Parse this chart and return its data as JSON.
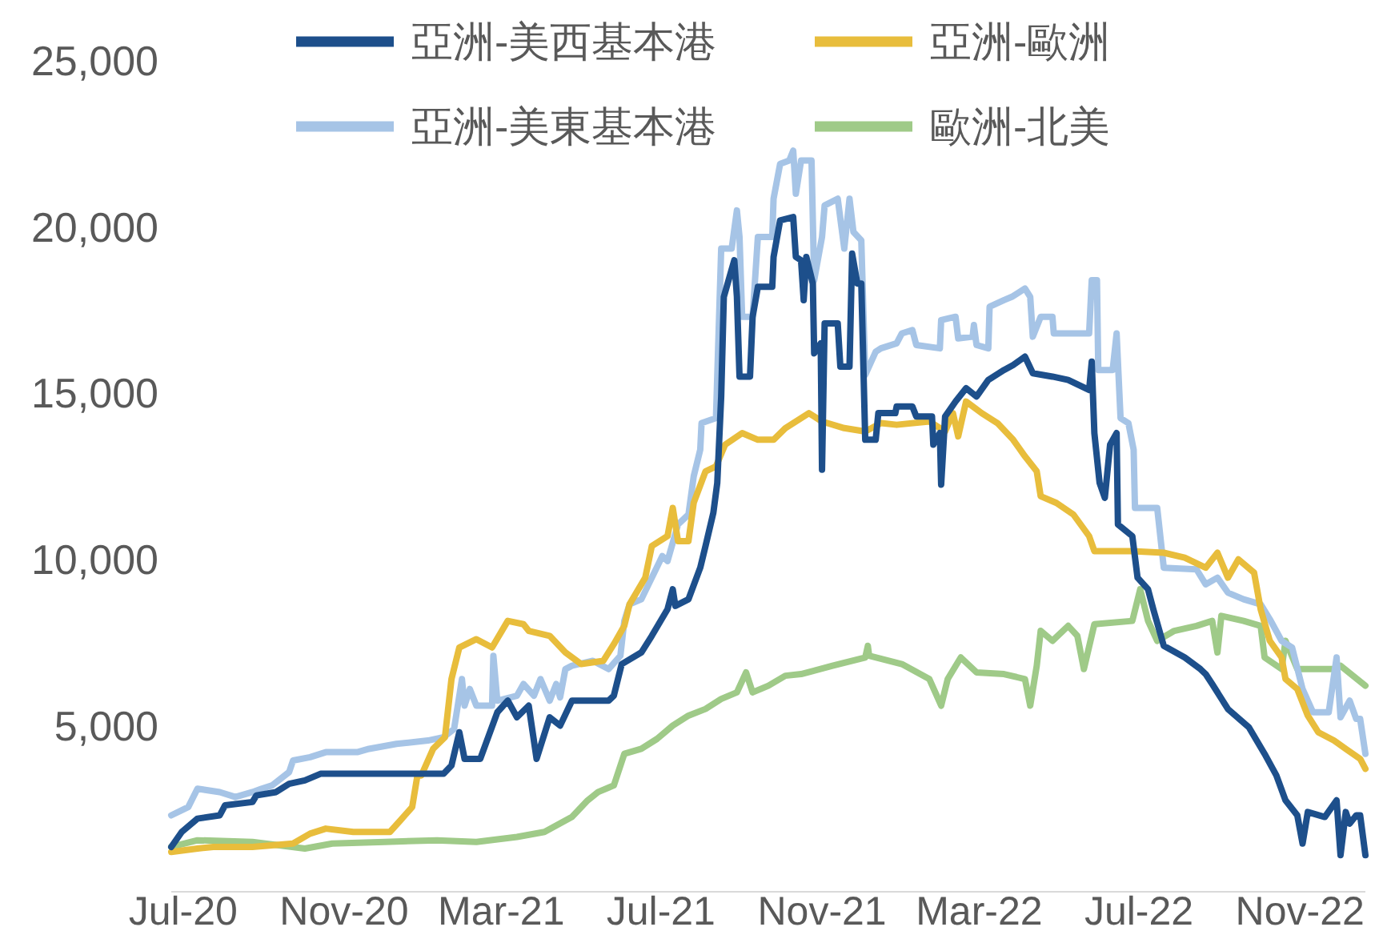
{
  "chart_data": {
    "type": "line",
    "legend": "top",
    "grid": false,
    "xlim": [
      "2020-06-22",
      "2022-12-21"
    ],
    "ylim": [
      0,
      25000
    ],
    "xticks": [
      {
        "value": "2020-07-01",
        "label": "Jul-20"
      },
      {
        "value": "2020-11-01",
        "label": "Nov-20"
      },
      {
        "value": "2021-03-01",
        "label": "Mar-21"
      },
      {
        "value": "2021-07-01",
        "label": "Jul-21"
      },
      {
        "value": "2021-11-01",
        "label": "Nov-21"
      },
      {
        "value": "2022-03-01",
        "label": "Mar-22"
      },
      {
        "value": "2022-07-01",
        "label": "Jul-22"
      },
      {
        "value": "2022-11-01",
        "label": "Nov-22"
      }
    ],
    "yticks": [
      {
        "value": 5000,
        "label": "5,000"
      },
      {
        "value": 10000,
        "label": "10,000"
      },
      {
        "value": 15000,
        "label": "15,000"
      },
      {
        "value": 20000,
        "label": "20,000"
      },
      {
        "value": 25000,
        "label": "25,000"
      }
    ],
    "series": [
      {
        "name": "亞洲-美西基本港",
        "color": "#1d4f8b",
        "x": [
          "2020-06-22",
          "2020-06-30",
          "2020-07-12",
          "2020-07-29",
          "2020-08-02",
          "2020-08-23",
          "2020-08-26",
          "2020-09-10",
          "2020-09-20",
          "2020-10-02",
          "2020-10-14",
          "2021-01-16",
          "2021-01-22",
          "2021-01-28",
          "2021-02-01",
          "2021-02-13",
          "2021-02-26",
          "2021-03-06",
          "2021-03-13",
          "2021-03-22",
          "2021-03-28",
          "2021-04-07",
          "2021-04-15",
          "2021-04-24",
          "2021-05-22",
          "2021-05-26",
          "2021-06-01",
          "2021-06-16",
          "2021-06-24",
          "2021-07-06",
          "2021-07-10",
          "2021-07-12",
          "2021-07-22",
          "2021-07-31",
          "2021-08-04",
          "2021-08-10",
          "2021-08-13",
          "2021-08-16",
          "2021-08-18",
          "2021-08-26",
          "2021-08-28",
          "2021-08-30",
          "2021-09-07",
          "2021-09-09",
          "2021-09-13",
          "2021-09-24",
          "2021-09-25",
          "2021-09-30",
          "2021-10-10",
          "2021-10-12",
          "2021-10-16",
          "2021-10-18",
          "2021-10-20",
          "2021-10-25",
          "2021-10-26",
          "2021-10-31",
          "2021-11-01",
          "2021-11-03",
          "2021-11-13",
          "2021-11-15",
          "2021-11-22",
          "2021-11-24",
          "2021-11-28",
          "2021-12-01",
          "2021-12-04",
          "2021-12-12",
          "2021-12-14",
          "2021-12-27",
          "2021-12-28",
          "2022-01-09",
          "2022-01-12",
          "2022-01-24",
          "2022-01-25",
          "2022-01-30",
          "2022-01-31",
          "2022-02-03",
          "2022-02-11",
          "2022-02-19",
          "2022-02-27",
          "2022-03-08",
          "2022-03-20",
          "2022-03-27",
          "2022-04-05",
          "2022-04-11",
          "2022-04-26",
          "2022-05-08",
          "2022-05-24",
          "2022-05-26",
          "2022-05-28",
          "2022-06-01",
          "2022-06-05",
          "2022-06-09",
          "2022-06-14",
          "2022-06-15",
          "2022-06-26",
          "2022-06-30",
          "2022-07-08",
          "2022-07-12",
          "2022-07-20",
          "2022-08-05",
          "2022-08-17",
          "2022-08-21",
          "2022-08-26",
          "2022-09-07",
          "2022-09-23",
          "2022-10-05",
          "2022-10-14",
          "2022-10-21",
          "2022-10-30",
          "2022-11-03",
          "2022-11-07",
          "2022-11-20",
          "2022-11-29",
          "2022-12-02",
          "2022-12-06",
          "2022-12-09",
          "2022-12-14",
          "2022-12-17",
          "2022-12-21"
        ],
        "values": [
          1350,
          1800,
          2200,
          2300,
          2600,
          2700,
          2900,
          3000,
          3250,
          3350,
          3550,
          3550,
          3800,
          4800,
          4000,
          4000,
          5400,
          5750,
          5250,
          5600,
          4000,
          5250,
          5000,
          5750,
          5750,
          5900,
          6850,
          7200,
          7700,
          8500,
          9100,
          8600,
          8800,
          9750,
          10400,
          11400,
          12300,
          14900,
          17900,
          19000,
          17900,
          15500,
          15500,
          17300,
          18200,
          18200,
          19100,
          20200,
          20300,
          19100,
          19000,
          17800,
          19100,
          18300,
          16200,
          16500,
          12700,
          17100,
          17100,
          15800,
          15800,
          19200,
          18300,
          18300,
          13600,
          13600,
          14400,
          14400,
          14600,
          14600,
          14300,
          14300,
          13450,
          13800,
          12250,
          14300,
          14750,
          15150,
          14900,
          15400,
          15700,
          15850,
          16100,
          15600,
          15500,
          15400,
          15100,
          15950,
          13800,
          12300,
          11850,
          13450,
          13800,
          11050,
          10700,
          9450,
          9100,
          8500,
          7400,
          7050,
          6700,
          6550,
          6250,
          5500,
          4950,
          4150,
          3500,
          2750,
          2300,
          1450,
          2400,
          2250,
          2750,
          1100,
          2400,
          2050,
          2300,
          2300,
          1100
        ]
      },
      {
        "name": "亞洲-歐洲",
        "color": "#e8bd3c",
        "x": [
          "2020-06-22",
          "2020-07-12",
          "2020-07-24",
          "2020-08-23",
          "2020-09-23",
          "2020-10-06",
          "2020-10-18",
          "2020-11-08",
          "2020-12-06",
          "2020-12-14",
          "2020-12-23",
          "2020-12-27",
          "2020-12-30",
          "2021-01-08",
          "2021-01-17",
          "2021-01-22",
          "2021-01-28",
          "2021-02-10",
          "2021-02-22",
          "2021-03-06",
          "2021-03-18",
          "2021-03-22",
          "2021-04-07",
          "2021-04-19",
          "2021-05-01",
          "2021-05-18",
          "2021-05-26",
          "2021-06-03",
          "2021-06-07",
          "2021-06-19",
          "2021-06-24",
          "2021-07-06",
          "2021-07-10",
          "2021-07-14",
          "2021-07-22",
          "2021-07-26",
          "2021-08-04",
          "2021-08-12",
          "2021-08-19",
          "2021-09-01",
          "2021-09-13",
          "2021-09-25",
          "2021-10-04",
          "2021-10-16",
          "2021-10-22",
          "2021-11-01",
          "2021-11-18",
          "2021-12-04",
          "2021-12-16",
          "2021-12-28",
          "2022-01-22",
          "2022-02-03",
          "2022-02-09",
          "2022-02-13",
          "2022-02-19",
          "2022-03-03",
          "2022-03-15",
          "2022-03-27",
          "2022-04-05",
          "2022-04-14",
          "2022-04-17",
          "2022-04-29",
          "2022-05-12",
          "2022-05-24",
          "2022-05-28",
          "2022-06-26",
          "2022-07-20",
          "2022-08-05",
          "2022-08-21",
          "2022-08-30",
          "2022-09-07",
          "2022-09-15",
          "2022-09-27",
          "2022-10-02",
          "2022-10-09",
          "2022-10-18",
          "2022-10-21",
          "2022-10-30",
          "2022-11-07",
          "2022-11-15",
          "2022-11-27",
          "2022-12-06",
          "2022-12-17",
          "2022-12-21"
        ],
        "values": [
          1200,
          1300,
          1350,
          1350,
          1450,
          1750,
          1900,
          1800,
          1800,
          2150,
          2550,
          3500,
          3500,
          4300,
          4650,
          6400,
          7350,
          7600,
          7350,
          8150,
          8050,
          7850,
          7700,
          7200,
          6850,
          6950,
          7450,
          8000,
          8650,
          9450,
          10400,
          10700,
          11550,
          10550,
          10550,
          11700,
          12650,
          12800,
          13450,
          13800,
          13600,
          13600,
          13950,
          14250,
          14400,
          14150,
          13950,
          13850,
          14100,
          14050,
          14150,
          13850,
          14400,
          13700,
          14750,
          14400,
          14100,
          13600,
          13100,
          12650,
          11900,
          11700,
          11350,
          10700,
          10250,
          10250,
          10200,
          10050,
          9750,
          10200,
          9450,
          10000,
          9600,
          8500,
          7550,
          7050,
          6400,
          6100,
          5300,
          4800,
          4550,
          4300,
          4000,
          3700
        ]
      },
      {
        "name": "亞洲-美東基本港",
        "color": "#a6c4e6",
        "x": [
          "2020-06-22",
          "2020-07-05",
          "2020-07-12",
          "2020-07-29",
          "2020-08-10",
          "2020-08-23",
          "2020-08-30",
          "2020-09-07",
          "2020-09-20",
          "2020-09-23",
          "2020-10-06",
          "2020-10-18",
          "2020-11-11",
          "2020-11-20",
          "2020-12-11",
          "2021-01-04",
          "2021-01-16",
          "2021-01-24",
          "2021-01-30",
          "2021-02-01",
          "2021-02-05",
          "2021-02-10",
          "2021-02-22",
          "2021-02-23",
          "2021-02-26",
          "2021-03-13",
          "2021-03-18",
          "2021-03-26",
          "2021-03-31",
          "2021-04-07",
          "2021-04-12",
          "2021-04-15",
          "2021-04-19",
          "2021-04-24",
          "2021-05-10",
          "2021-05-22",
          "2021-05-31",
          "2021-06-03",
          "2021-06-07",
          "2021-06-16",
          "2021-07-02",
          "2021-07-06",
          "2021-07-14",
          "2021-07-22",
          "2021-07-26",
          "2021-07-31",
          "2021-08-01",
          "2021-08-12",
          "2021-08-16",
          "2021-08-24",
          "2021-08-28",
          "2021-08-30",
          "2021-09-01",
          "2021-09-09",
          "2021-09-13",
          "2021-09-24",
          "2021-09-25",
          "2021-09-30",
          "2021-10-07",
          "2021-10-10",
          "2021-10-12",
          "2021-10-16",
          "2021-10-24",
          "2021-10-26",
          "2021-11-01",
          "2021-11-03",
          "2021-11-13",
          "2021-11-18",
          "2021-11-22",
          "2021-11-25",
          "2021-12-01",
          "2021-12-04",
          "2021-12-12",
          "2021-12-16",
          "2021-12-28",
          "2022-01-01",
          "2022-01-09",
          "2022-01-12",
          "2022-01-30",
          "2022-01-31",
          "2022-02-11",
          "2022-02-13",
          "2022-02-24",
          "2022-02-25",
          "2022-02-27",
          "2022-03-08",
          "2022-03-09",
          "2022-03-20",
          "2022-03-26",
          "2022-04-05",
          "2022-04-09",
          "2022-04-11",
          "2022-04-17",
          "2022-04-26",
          "2022-04-27",
          "2022-05-24",
          "2022-05-26",
          "2022-05-30",
          "2022-05-31",
          "2022-06-11",
          "2022-06-14",
          "2022-06-17",
          "2022-06-23",
          "2022-06-27",
          "2022-06-28",
          "2022-07-15",
          "2022-07-20",
          "2022-08-14",
          "2022-08-21",
          "2022-08-30",
          "2022-09-07",
          "2022-09-19",
          "2022-10-02",
          "2022-10-09",
          "2022-10-18",
          "2022-10-26",
          "2022-11-03",
          "2022-11-11",
          "2022-11-23",
          "2022-11-29",
          "2022-12-02",
          "2022-12-09",
          "2022-12-14",
          "2022-12-17",
          "2022-12-21"
        ],
        "values": [
          2300,
          2550,
          3100,
          3000,
          2850,
          3000,
          3100,
          3200,
          3600,
          3950,
          4050,
          4200,
          4200,
          4300,
          4450,
          4550,
          4650,
          4900,
          6400,
          5600,
          6100,
          5600,
          5600,
          7100,
          5750,
          5900,
          6250,
          5900,
          6400,
          5750,
          6250,
          5850,
          6700,
          6800,
          6950,
          6700,
          7100,
          8150,
          8650,
          8800,
          10100,
          9950,
          11050,
          11350,
          12500,
          13300,
          14100,
          14250,
          19350,
          19350,
          20500,
          19700,
          17300,
          17300,
          19700,
          19700,
          20850,
          21900,
          22000,
          22300,
          21000,
          22000,
          22000,
          18400,
          19700,
          20650,
          20850,
          19350,
          20850,
          19850,
          19600,
          15550,
          16250,
          16350,
          16500,
          16800,
          16900,
          16450,
          16350,
          17200,
          17300,
          16650,
          16700,
          17050,
          16450,
          16350,
          17600,
          17800,
          17900,
          18150,
          17900,
          16700,
          17300,
          17300,
          16800,
          16800,
          18400,
          18400,
          15700,
          15700,
          16800,
          14250,
          14100,
          13300,
          11550,
          11550,
          9750,
          9700,
          9250,
          9450,
          9000,
          8800,
          8650,
          8200,
          7550,
          7350,
          6100,
          5400,
          5400,
          7050,
          5250,
          5750,
          5200,
          5200,
          4150
        ]
      },
      {
        "name": "歐洲-北美",
        "color": "#9fca88",
        "x": [
          "2020-06-22",
          "2020-07-12",
          "2020-08-23",
          "2020-10-02",
          "2020-10-23",
          "2020-12-02",
          "2021-01-11",
          "2021-02-10",
          "2021-03-13",
          "2021-04-03",
          "2021-04-24",
          "2021-05-06",
          "2021-05-14",
          "2021-05-26",
          "2021-06-03",
          "2021-06-16",
          "2021-06-28",
          "2021-07-10",
          "2021-07-22",
          "2021-08-04",
          "2021-08-16",
          "2021-08-28",
          "2021-09-04",
          "2021-09-09",
          "2021-09-21",
          "2021-10-04",
          "2021-10-16",
          "2021-11-09",
          "2021-12-04",
          "2021-12-06",
          "2021-12-07",
          "2022-01-01",
          "2022-01-22",
          "2022-01-31",
          "2022-02-05",
          "2022-02-15",
          "2022-02-27",
          "2022-03-20",
          "2022-04-05",
          "2022-04-09",
          "2022-04-14",
          "2022-04-17",
          "2022-04-26",
          "2022-05-08",
          "2022-05-15",
          "2022-05-20",
          "2022-05-28",
          "2022-06-26",
          "2022-07-02",
          "2022-07-08",
          "2022-07-15",
          "2022-07-28",
          "2022-08-14",
          "2022-08-26",
          "2022-08-30",
          "2022-09-02",
          "2022-09-19",
          "2022-10-02",
          "2022-10-05",
          "2022-10-18",
          "2022-10-21",
          "2022-10-30",
          "2022-11-27",
          "2022-12-02",
          "2022-12-21"
        ],
        "values": [
          1350,
          1550,
          1500,
          1300,
          1450,
          1500,
          1550,
          1500,
          1650,
          1800,
          2250,
          2750,
          3000,
          3200,
          4150,
          4300,
          4600,
          5000,
          5300,
          5500,
          5800,
          6000,
          6600,
          6000,
          6200,
          6500,
          6550,
          6800,
          7050,
          7400,
          7100,
          6850,
          6400,
          5600,
          6400,
          7050,
          6600,
          6550,
          6400,
          5600,
          6800,
          7850,
          7550,
          8000,
          7700,
          6700,
          8050,
          8150,
          9100,
          8150,
          7550,
          7850,
          8000,
          8150,
          7200,
          8300,
          8150,
          8000,
          7050,
          6700,
          7550,
          6700,
          6700,
          6800,
          6200
        ]
      }
    ]
  }
}
